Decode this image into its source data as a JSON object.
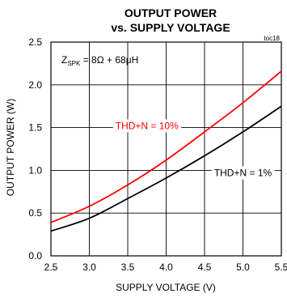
{
  "chart_data": {
    "type": "line",
    "title_line1": "OUTPUT POWER",
    "title_line2": "vs. SUPPLY VOLTAGE",
    "figure_id": "toc18",
    "xlabel": "SUPPLY VOLTAGE (V)",
    "ylabel": "OUTPUT POWER (W)",
    "xlim": [
      2.5,
      5.5
    ],
    "ylim": [
      0,
      2.5
    ],
    "x_ticks": [
      "2.5",
      "3.0",
      "3.5",
      "4.0",
      "4.5",
      "5.0",
      "5.5"
    ],
    "y_ticks": [
      "0.0",
      "0.5",
      "1.0",
      "1.5",
      "2.0",
      "2.5"
    ],
    "grid": true,
    "annotation": {
      "z_main": "Z",
      "z_sub": "SPK",
      "z_rest": " = 8Ω + 68μH"
    },
    "series": [
      {
        "name": "THD+N = 10%",
        "color": "#ff0000",
        "x": [
          2.5,
          3.0,
          3.5,
          4.0,
          4.5,
          5.0,
          5.5
        ],
        "y": [
          0.39,
          0.58,
          0.83,
          1.12,
          1.45,
          1.79,
          2.16
        ]
      },
      {
        "name": "THD+N = 1%",
        "color": "#000000",
        "x": [
          2.5,
          3.0,
          3.5,
          4.0,
          4.5,
          5.0,
          5.5
        ],
        "y": [
          0.29,
          0.44,
          0.67,
          0.91,
          1.17,
          1.45,
          1.75
        ]
      }
    ]
  }
}
